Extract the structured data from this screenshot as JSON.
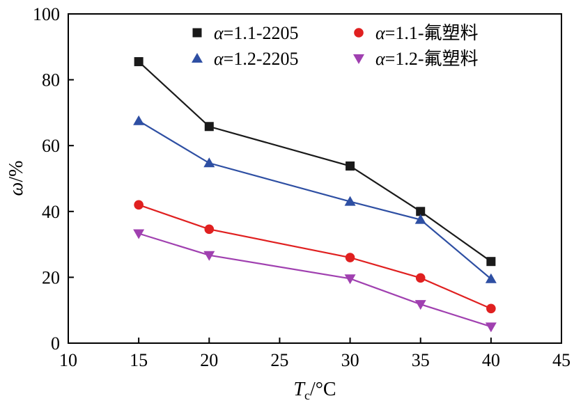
{
  "chart_data": {
    "type": "line",
    "title": "",
    "xlabel": {
      "main": "T",
      "sub": "c",
      "unit": "/°C"
    },
    "ylabel": {
      "main": "ω",
      "unit": "/%"
    },
    "xlim": [
      10,
      45
    ],
    "ylim": [
      0,
      100
    ],
    "xticks": [
      10,
      15,
      20,
      25,
      30,
      35,
      40,
      45
    ],
    "yticks": [
      0,
      20,
      40,
      60,
      80,
      100
    ],
    "grid": false,
    "legend_position": "top-right",
    "series": [
      {
        "name": "α=1.1-2205",
        "greek": "α",
        "rest": "=1.1-2205",
        "color": "#1a1a1a",
        "marker": "square",
        "x": [
          15,
          20,
          30,
          35,
          40
        ],
        "y": [
          85.5,
          65.8,
          53.8,
          40.0,
          24.8
        ]
      },
      {
        "name": "α=1.2-2205",
        "greek": "α",
        "rest": "=1.2-2205",
        "color": "#2e4fa3",
        "marker": "triangle-up",
        "x": [
          15,
          20,
          30,
          35,
          40
        ],
        "y": [
          67.5,
          54.7,
          43.0,
          37.5,
          19.5
        ]
      },
      {
        "name": "α=1.1-氟塑料",
        "greek": "α",
        "rest": "=1.1-氟塑料",
        "color": "#e02020",
        "marker": "circle",
        "x": [
          15,
          20,
          30,
          35,
          40
        ],
        "y": [
          42.0,
          34.6,
          26.0,
          19.8,
          10.5
        ]
      },
      {
        "name": "α=1.2-氟塑料",
        "greek": "α",
        "rest": "=1.2-氟塑料",
        "color": "#a040b0",
        "marker": "triangle-down",
        "x": [
          15,
          20,
          30,
          35,
          40
        ],
        "y": [
          33.3,
          26.7,
          19.6,
          11.8,
          5.0
        ]
      }
    ]
  }
}
